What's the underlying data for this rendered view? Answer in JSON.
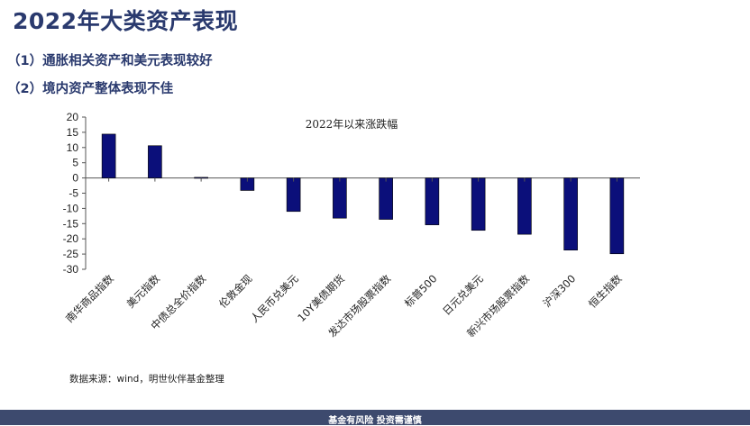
{
  "slide": {
    "title": "2022年大类资产表现",
    "points": [
      "（1）通胀相关资产和美元表现较好",
      "（2）境内资产整体表现不佳"
    ],
    "source": "数据来源：wind，明世伙伴基金整理",
    "footer": "基金有风险  投资需谨慎"
  },
  "chart_data": {
    "type": "bar",
    "title": "2022年以来涨跌幅",
    "categories": [
      "南华商品指数",
      "美元指数",
      "中债总全价指数",
      "伦敦金现",
      "人民币兑美元",
      "10Y美债期货",
      "发达市场股票指数",
      "标普500",
      "日元兑美元",
      "新兴市场股票指数",
      "沪深300",
      "恒生指数"
    ],
    "values": [
      14.4,
      10.6,
      0.2,
      -4.1,
      -11.0,
      -13.2,
      -13.6,
      -15.4,
      -17.2,
      -18.5,
      -23.7,
      -24.9
    ],
    "ylim": [
      -30,
      20
    ],
    "yticks": [
      20,
      15,
      10,
      5,
      0,
      -5,
      -10,
      -15,
      -20,
      -25,
      -30
    ],
    "bar_color": "#0b0f7a",
    "grid": false
  }
}
